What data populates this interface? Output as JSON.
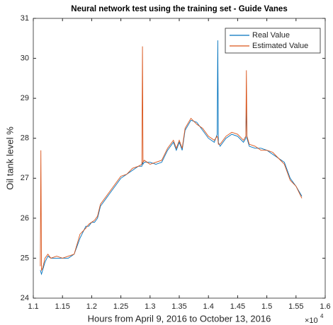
{
  "chart_data": {
    "type": "line",
    "title": "Neural network test using the training set - Guide Vanes",
    "x_label": "Hours from April 9, 2016 to October 13, 2016",
    "y_label": "Oil tank level %",
    "x_multiplier_label": "×10",
    "x_multiplier_exponent": 4,
    "x": [
      1.112,
      1.113,
      1.114,
      1.116,
      1.12,
      1.125,
      1.13,
      1.14,
      1.15,
      1.16,
      1.17,
      1.175,
      1.18,
      1.19,
      1.195,
      1.2,
      1.205,
      1.21,
      1.215,
      1.22,
      1.225,
      1.23,
      1.24,
      1.25,
      1.26,
      1.27,
      1.28,
      1.286,
      1.287,
      1.288,
      1.29,
      1.3,
      1.31,
      1.32,
      1.33,
      1.34,
      1.345,
      1.35,
      1.355,
      1.36,
      1.37,
      1.38,
      1.39,
      1.4,
      1.41,
      1.415,
      1.416,
      1.417,
      1.42,
      1.43,
      1.44,
      1.45,
      1.46,
      1.464,
      1.465,
      1.466,
      1.47,
      1.48,
      1.49,
      1.5,
      1.51,
      1.52,
      1.53,
      1.54,
      1.55,
      1.56
    ],
    "series": [
      {
        "name": "Real Value",
        "color": "#0072BD",
        "values": [
          24.7,
          24.65,
          24.6,
          24.7,
          24.9,
          25.05,
          25.0,
          25.0,
          25.0,
          25.0,
          25.1,
          25.3,
          25.5,
          25.8,
          25.8,
          25.9,
          25.9,
          26.0,
          26.3,
          26.4,
          26.5,
          26.6,
          26.8,
          27.0,
          27.1,
          27.2,
          27.3,
          27.3,
          27.4,
          27.35,
          27.4,
          27.4,
          27.35,
          27.4,
          27.7,
          27.9,
          27.7,
          27.9,
          27.7,
          28.2,
          28.45,
          28.4,
          28.2,
          28.0,
          27.9,
          28.1,
          30.45,
          27.9,
          27.8,
          28.0,
          28.1,
          28.05,
          27.9,
          28.0,
          28.9,
          28.0,
          27.8,
          27.75,
          27.75,
          27.7,
          27.6,
          27.5,
          27.4,
          27.0,
          26.8,
          26.55
        ]
      },
      {
        "name": "Estimated Value",
        "color": "#D95319",
        "values": [
          24.8,
          27.7,
          24.7,
          24.75,
          25.0,
          25.1,
          25.0,
          25.05,
          25.0,
          25.05,
          25.1,
          25.35,
          25.6,
          25.75,
          25.85,
          25.9,
          25.95,
          26.05,
          26.35,
          26.45,
          26.55,
          26.65,
          26.85,
          27.05,
          27.1,
          27.25,
          27.3,
          27.35,
          30.3,
          27.4,
          27.45,
          27.35,
          27.4,
          27.45,
          27.75,
          27.95,
          27.75,
          27.95,
          27.75,
          28.25,
          28.5,
          28.35,
          28.25,
          28.05,
          27.95,
          28.05,
          28.0,
          27.85,
          27.85,
          28.05,
          28.15,
          28.1,
          27.95,
          28.05,
          29.7,
          28.05,
          27.85,
          27.8,
          27.7,
          27.7,
          27.65,
          27.5,
          27.35,
          26.95,
          26.8,
          26.5
        ]
      }
    ],
    "xlim": [
      1.1,
      1.6
    ],
    "xticks": [
      1.1,
      1.15,
      1.2,
      1.25,
      1.3,
      1.35,
      1.4,
      1.45,
      1.5,
      1.55,
      1.6
    ],
    "ylim": [
      24,
      31
    ],
    "yticks": [
      24,
      25,
      26,
      27,
      28,
      29,
      30,
      31
    ],
    "grid": false,
    "legend": "top-right"
  }
}
